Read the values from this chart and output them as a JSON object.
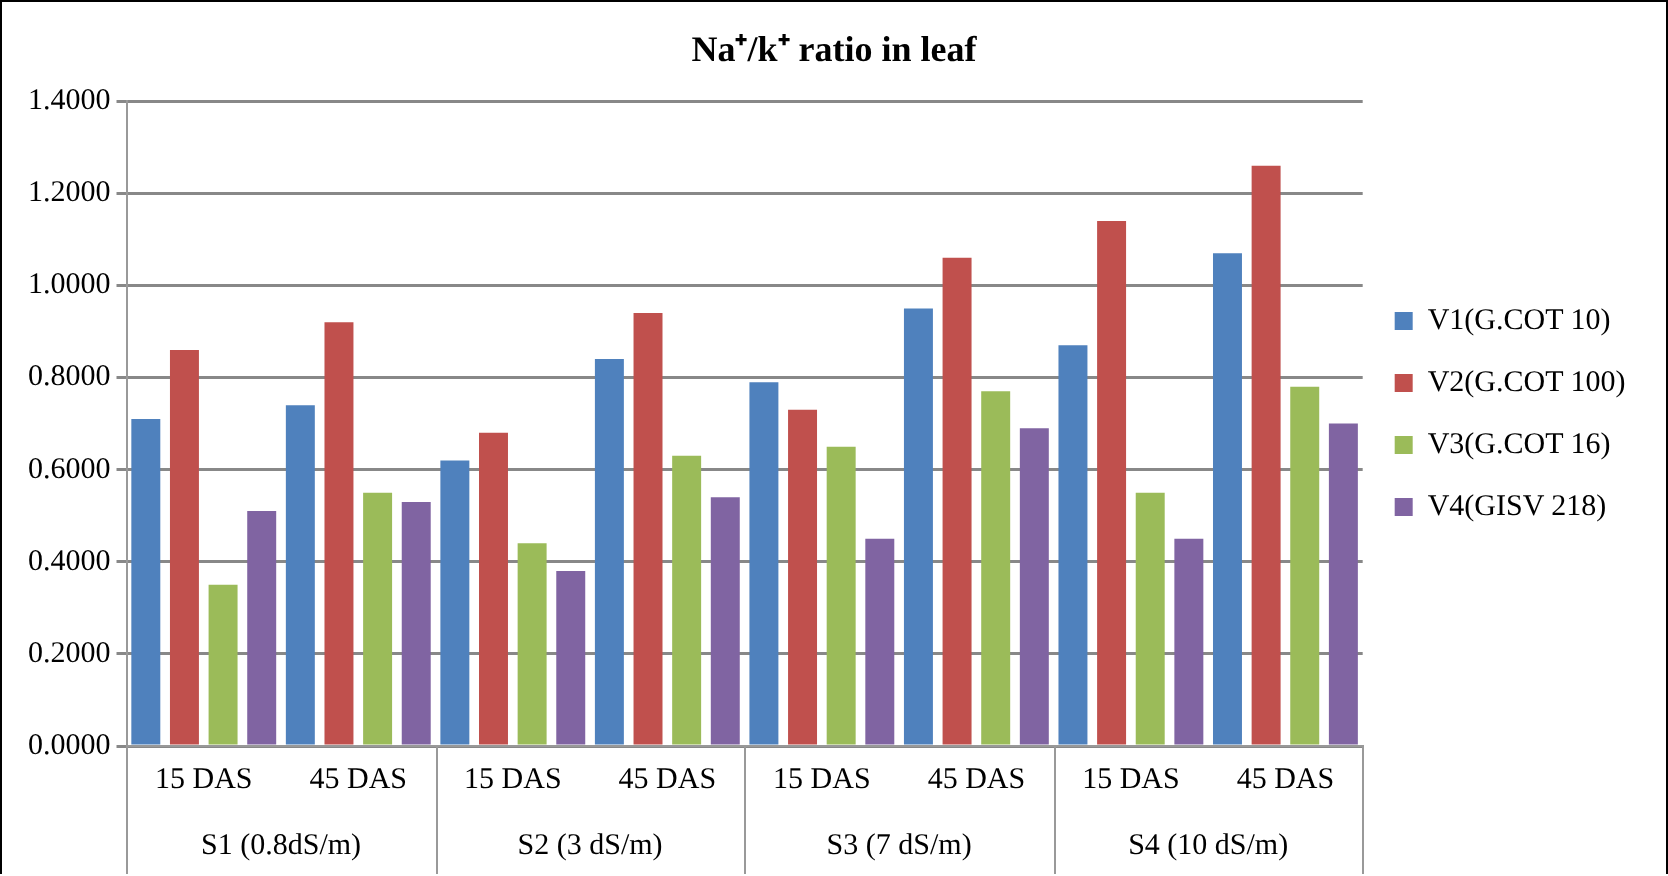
{
  "chart_data": {
    "type": "bar",
    "title": "Na⁺/k⁺ ratio in leaf",
    "categories": [
      "15 DAS",
      "45 DAS",
      "15 DAS",
      "45 DAS",
      "15 DAS",
      "45 DAS",
      "15 DAS",
      "45 DAS"
    ],
    "annotations": [
      "S1 (0.8dS/m)",
      "S2 (3 dS/m)",
      "S3 (7 dS/m)",
      "S4 (10 dS/m)"
    ],
    "series": [
      {
        "name": "V1(G.COT 10)",
        "color": "#4f81bd",
        "values": [
          0.71,
          0.74,
          0.62,
          0.84,
          0.79,
          0.95,
          0.87,
          1.07
        ]
      },
      {
        "name": "V2(G.COT 100)",
        "color": "#c0504d",
        "values": [
          0.86,
          0.92,
          0.68,
          0.94,
          0.73,
          1.06,
          1.14,
          1.26
        ]
      },
      {
        "name": "V3(G.COT 16)",
        "color": "#9bbb59",
        "values": [
          0.35,
          0.55,
          0.44,
          0.63,
          0.65,
          0.77,
          0.55,
          0.78
        ]
      },
      {
        "name": "V4(GISV 218)",
        "color": "#8064a2",
        "values": [
          0.51,
          0.53,
          0.38,
          0.54,
          0.45,
          0.69,
          0.45,
          0.7
        ]
      }
    ],
    "ylim": [
      0,
      1.4
    ],
    "yticks": [
      {
        "value": 0,
        "label": "0.0000"
      },
      {
        "value": 0.2,
        "label": "0.2000"
      },
      {
        "value": 0.4,
        "label": "0.4000"
      },
      {
        "value": 0.6,
        "label": "0.6000"
      },
      {
        "value": 0.8,
        "label": "0.8000"
      },
      {
        "value": 1.0,
        "label": "1.0000"
      },
      {
        "value": 1.2,
        "label": "1.2000"
      },
      {
        "value": 1.4,
        "label": "1.4000"
      }
    ],
    "grid": "y",
    "legend": "right"
  }
}
